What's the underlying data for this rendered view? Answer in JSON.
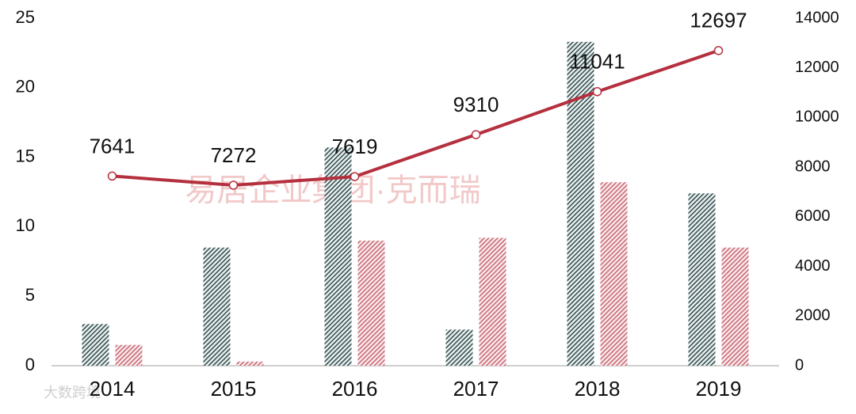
{
  "chart_data": {
    "type": "bar",
    "categories": [
      "2014",
      "2015",
      "2016",
      "2017",
      "2018",
      "2019"
    ],
    "series": [
      {
        "color": "#2f4a4c",
        "values": [
          3.0,
          8.5,
          15.7,
          2.6,
          23.3,
          12.4
        ]
      },
      {
        "color": "#c0505e",
        "values": [
          1.5,
          0.3,
          9.0,
          9.2,
          13.2,
          8.5
        ]
      },
      {
        "type": "line",
        "axis": "y2",
        "color": "#b5303f",
        "values": [
          7641,
          7272,
          7619,
          9310,
          11041,
          12697
        ]
      }
    ],
    "ylim": [
      0,
      25
    ],
    "yticks": [
      0,
      5,
      10,
      15,
      20,
      25
    ],
    "y2lim": [
      0,
      14000
    ],
    "y2ticks": [
      0,
      2000,
      4000,
      6000,
      8000,
      10000,
      12000,
      14000
    ],
    "grid": false,
    "watermarks": [
      "易居企业集团·克而瑞",
      "大数跨境"
    ]
  }
}
